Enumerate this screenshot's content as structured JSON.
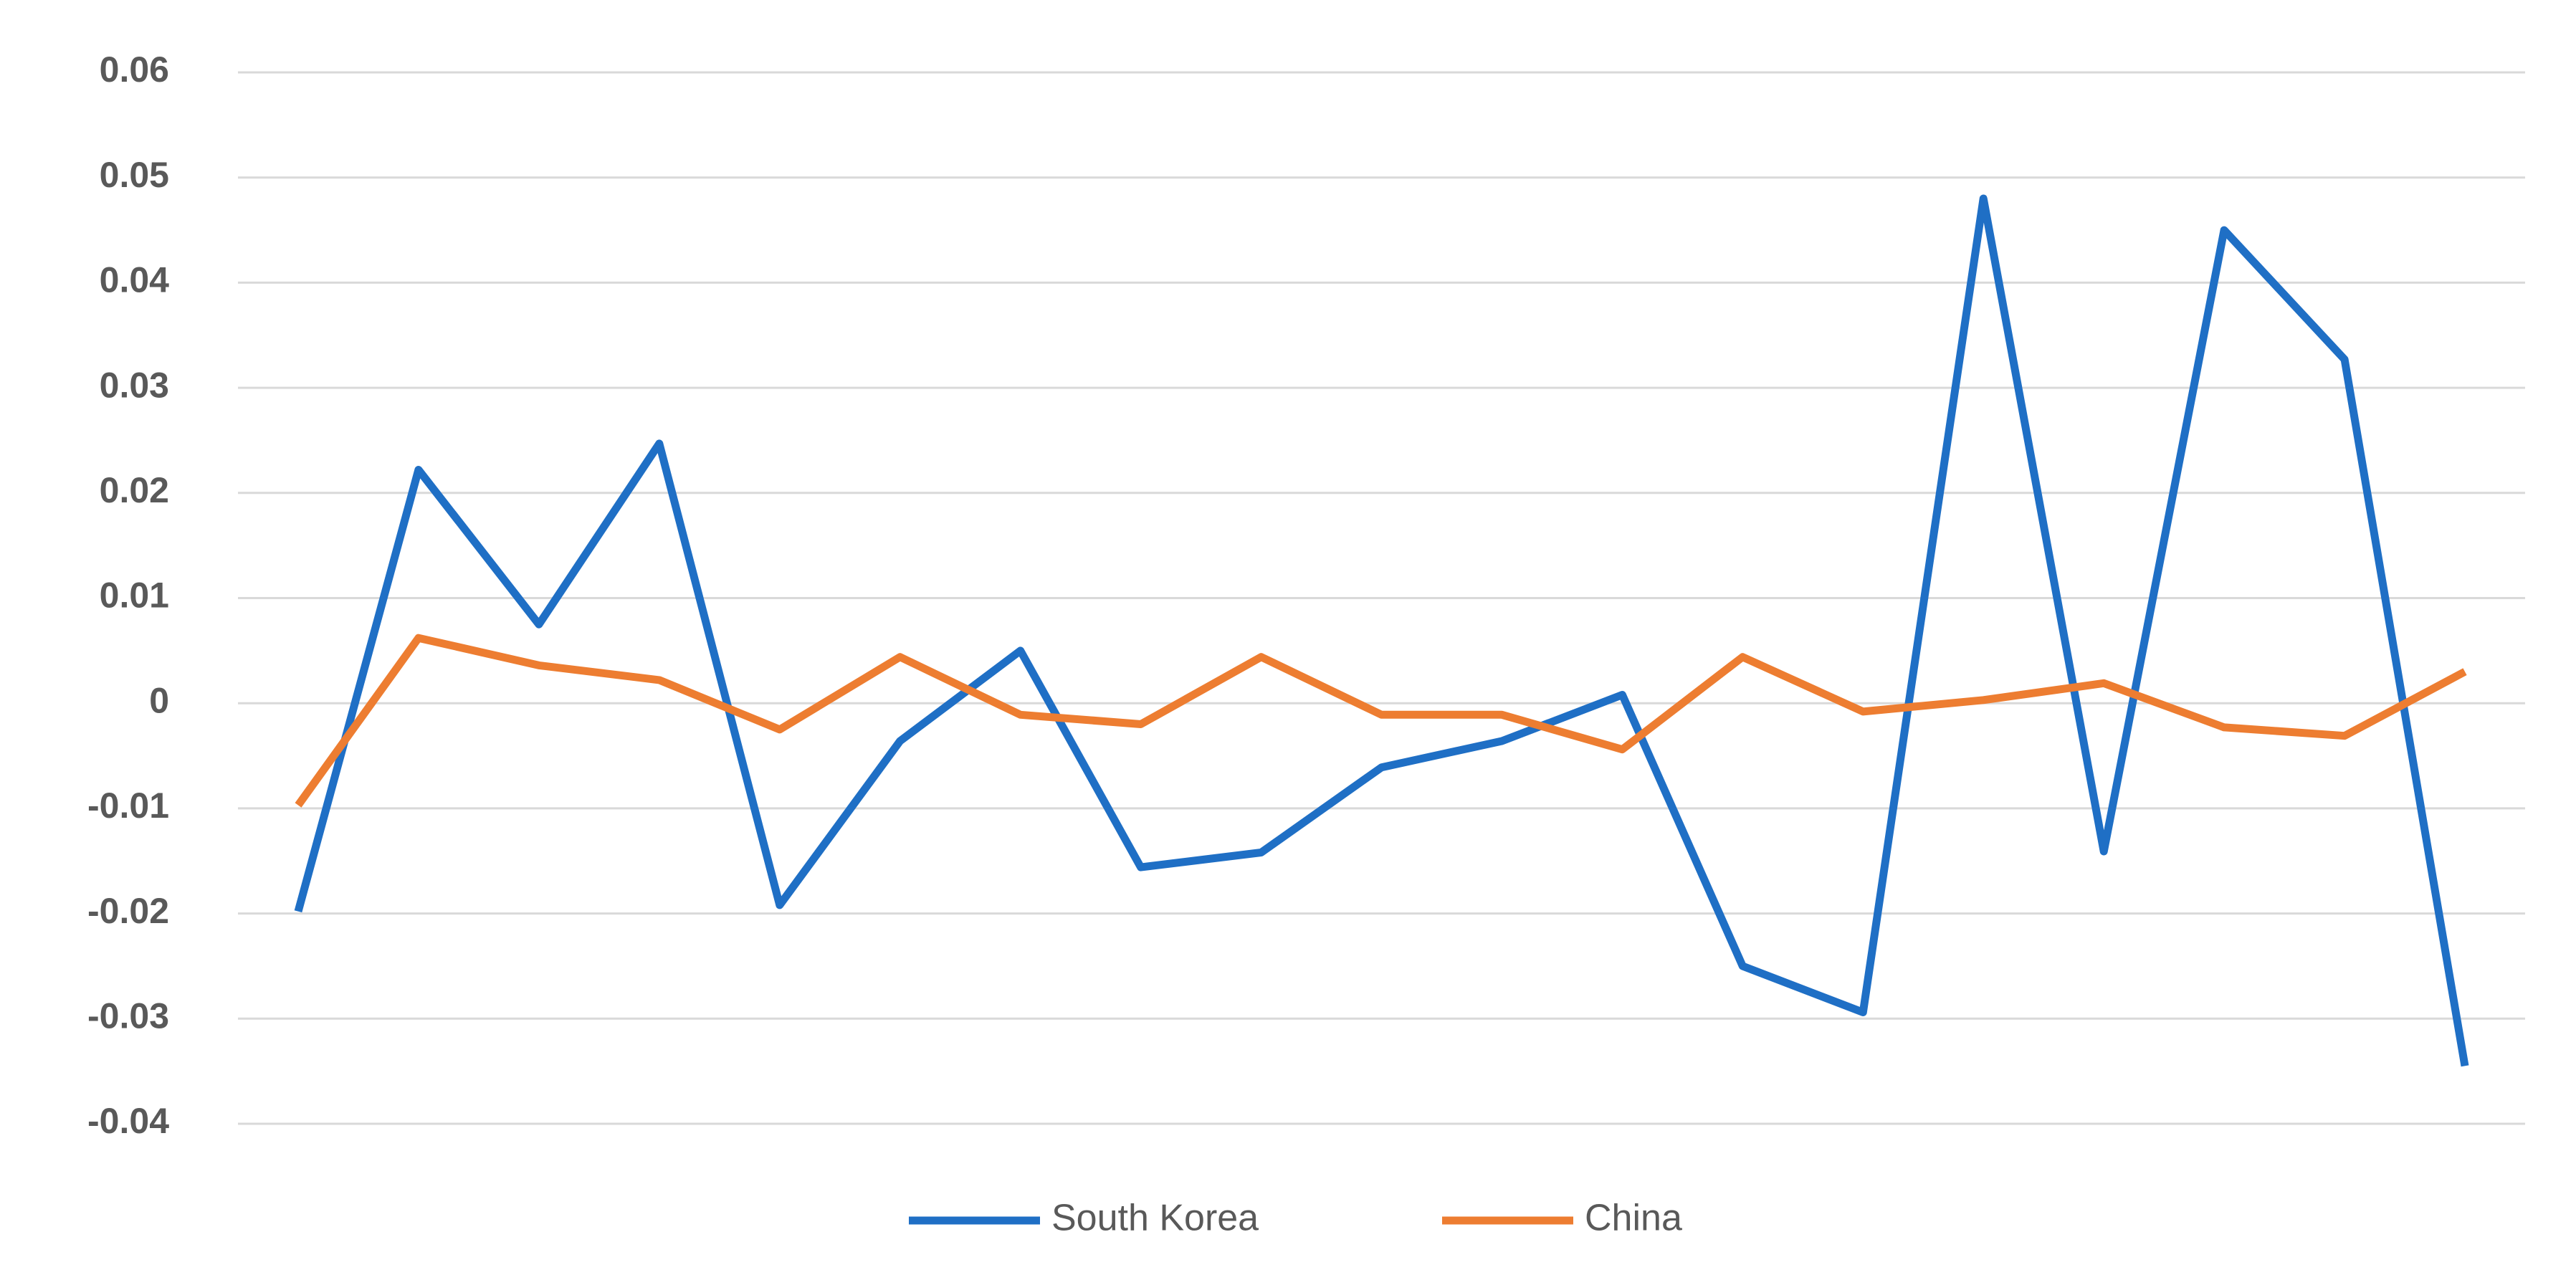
{
  "chart_data": {
    "type": "line",
    "categories": [
      null,
      null,
      null,
      null,
      null,
      null,
      null,
      null,
      null,
      null,
      null,
      null,
      null,
      null,
      null,
      null,
      null,
      null,
      null
    ],
    "series": [
      {
        "name": "South Korea",
        "color": "#1f6fc5",
        "values": [
          -0.0198,
          0.0222,
          0.0075,
          0.0247,
          -0.0192,
          -0.0036,
          0.005,
          -0.0156,
          -0.0142,
          -0.0061,
          -0.0036,
          0.0008,
          -0.025,
          -0.0294,
          0.048,
          -0.0141,
          0.045,
          0.0327,
          -0.0345
        ]
      },
      {
        "name": "China",
        "color": "#ed7d31",
        "values": [
          -0.0097,
          0.0062,
          0.0036,
          0.0022,
          -0.0025,
          0.0044,
          -0.0011,
          -0.002,
          0.0044,
          -0.0011,
          -0.0011,
          -0.0044,
          0.0044,
          -0.0008,
          0.0003,
          0.0019,
          -0.0023,
          -0.0031,
          0.003
        ]
      }
    ],
    "ylim": [
      -0.04,
      0.06
    ],
    "yticks": [
      0.06,
      0.05,
      0.04,
      0.03,
      0.02,
      0.01,
      0,
      -0.01,
      -0.02,
      -0.03,
      -0.04
    ],
    "grid": true,
    "legend": "bottom"
  }
}
